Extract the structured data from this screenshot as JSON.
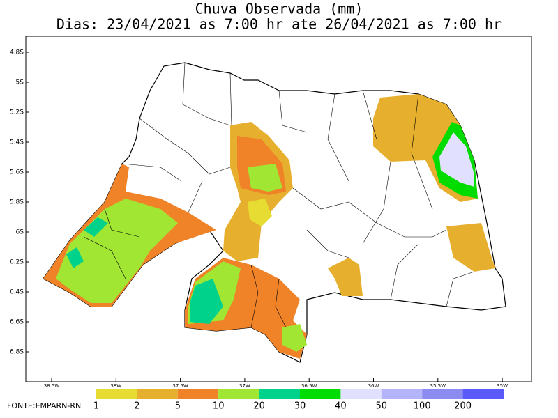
{
  "header": {
    "title": "Chuva Observada (mm)",
    "subtitle": "Dias: 23/04/2021 as 7:00 hr ate 26/04/2021 as 7:00 hr"
  },
  "map": {
    "lat_ticks": [
      "4.8S",
      "5S",
      "5.2S",
      "5.4S",
      "5.6S",
      "5.8S",
      "6S",
      "6.2S",
      "6.4S",
      "6.6S",
      "6.8S"
    ],
    "lon_ticks": [
      "38.5W",
      "38W",
      "37.5W",
      "37W",
      "36.5W",
      "36W",
      "35.5W",
      "35W"
    ]
  },
  "legend": {
    "labels": [
      1,
      2,
      5,
      10,
      20,
      30,
      40,
      50,
      100,
      200
    ],
    "colors": [
      "#e6dc32",
      "#e6af2d",
      "#f08228",
      "#a0e632",
      "#00d28c",
      "#00dc00",
      "#e1e1ff",
      "#b4b4fa",
      "#8c8cf0",
      "#5a5afa"
    ]
  },
  "footer": {
    "source": "FONTE:EMPARN-RN"
  }
}
